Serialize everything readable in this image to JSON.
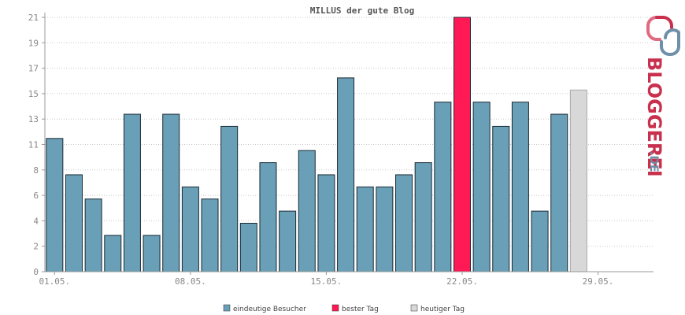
{
  "chart_data": {
    "type": "bar",
    "title": "MILLUS der gute Blog",
    "xlabel": "",
    "ylabel": "",
    "ylim": [
      0,
      21
    ],
    "y_ticks": [
      "0",
      "2",
      "4",
      "6",
      "8",
      "11",
      "13",
      "15",
      "17",
      "19",
      "21"
    ],
    "x_tick_labels": [
      {
        "day": 1,
        "label": "01.05."
      },
      {
        "day": 8,
        "label": "08.05."
      },
      {
        "day": 15,
        "label": "15.05."
      },
      {
        "day": 22,
        "label": "22.05."
      },
      {
        "day": 29,
        "label": "29.05."
      }
    ],
    "grid": true,
    "legend_position": "bottom",
    "series": [
      {
        "name": "eindeutige Besucher",
        "color": "#6a9fb8"
      },
      {
        "name": "bester Tag",
        "color": "#ff1a55"
      },
      {
        "name": "heutiger Tag",
        "color": "#d8d8d8"
      }
    ],
    "days": [
      1,
      2,
      3,
      4,
      5,
      6,
      7,
      8,
      9,
      10,
      11,
      12,
      13,
      14,
      15,
      16,
      17,
      18,
      19,
      20,
      21,
      22,
      23,
      24,
      25,
      26,
      27,
      28,
      29,
      30,
      31
    ],
    "values": [
      11,
      8,
      6,
      3,
      13,
      3,
      13,
      7,
      6,
      12,
      4,
      9,
      5,
      10,
      8,
      16,
      7,
      7,
      8,
      9,
      14,
      21,
      14,
      12,
      14,
      5,
      13,
      15,
      0,
      0,
      0
    ],
    "bar_kind": [
      "visitors",
      "visitors",
      "visitors",
      "visitors",
      "visitors",
      "visitors",
      "visitors",
      "visitors",
      "visitors",
      "visitors",
      "visitors",
      "visitors",
      "visitors",
      "visitors",
      "visitors",
      "visitors",
      "visitors",
      "visitors",
      "visitors",
      "visitors",
      "visitors",
      "best",
      "visitors",
      "visitors",
      "visitors",
      "visitors",
      "visitors",
      "today",
      "visitors",
      "visitors",
      "visitors"
    ]
  },
  "brand": {
    "logo_text": "BLOGGEREI",
    "logo_suffix": ".DE",
    "logo_icon": "bloggerei-chain-icon",
    "color_primary": "#c8304e",
    "color_secondary": "#6f8fa8"
  }
}
